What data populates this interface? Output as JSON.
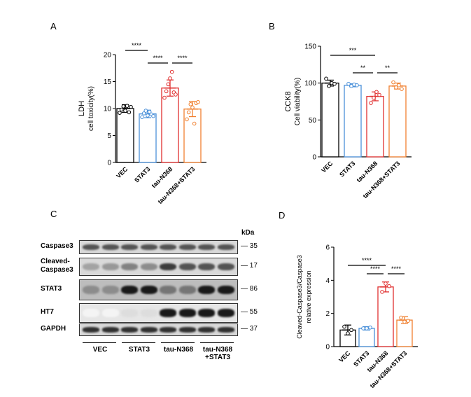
{
  "panels": {
    "a": "A",
    "b": "B",
    "c": "C",
    "d": "D"
  },
  "chart_data": [
    {
      "type": "bar",
      "categories": [
        "VEC",
        "STAT3",
        "tau-N368",
        "tau-N368+STAT3"
      ],
      "values": [
        10.0,
        9.0,
        13.8,
        9.9
      ],
      "errors": [
        0.7,
        0.7,
        1.5,
        1.4
      ],
      "points": [
        [
          9.2,
          9.8,
          10.4,
          9.6,
          10.5,
          9.3,
          10.3
        ],
        [
          8.4,
          9.1,
          9.6,
          8.7,
          9.4,
          8.9,
          8.6
        ],
        [
          12.0,
          13.2,
          14.5,
          15.6,
          16.8,
          13.0,
          12.6
        ],
        [
          8.0,
          9.3,
          10.8,
          10.2,
          7.2,
          11.0,
          11.2
        ]
      ],
      "ylabel": "LDH\ncell toxicity(%)",
      "ylim": [
        0,
        20
      ],
      "yticks": [
        0,
        5,
        10,
        15,
        20
      ],
      "colors": [
        "#000000",
        "#4a90d9",
        "#e03030",
        "#f08030"
      ],
      "significance": [
        {
          "from": 0,
          "to": 1,
          "label": "****"
        },
        {
          "from": 1,
          "to": 2,
          "label": "****"
        },
        {
          "from": 2,
          "to": 3,
          "label": "****"
        }
      ]
    },
    {
      "type": "bar",
      "categories": [
        "VEC",
        "STAT3",
        "tau-N368",
        "tau-N368+STAT3"
      ],
      "values": [
        100,
        97,
        82,
        96
      ],
      "errors": [
        4,
        2,
        6,
        4
      ],
      "points": [
        [
          106,
          96,
          100,
          99
        ],
        [
          99,
          96,
          98,
          97
        ],
        [
          73,
          80,
          88,
          84
        ],
        [
          101,
          94,
          97,
          92
        ]
      ],
      "ylabel": "CCK8\nCell viability(%)",
      "ylim": [
        0,
        150
      ],
      "yticks": [
        0,
        50,
        100,
        150
      ],
      "colors": [
        "#000000",
        "#4a90d9",
        "#e03030",
        "#f08030"
      ],
      "significance": [
        {
          "from": 0,
          "to": 2,
          "label": "***"
        },
        {
          "from": 1,
          "to": 2,
          "label": "**"
        },
        {
          "from": 2,
          "to": 3,
          "label": "**"
        }
      ]
    },
    {
      "type": "bar",
      "categories": [
        "VEC",
        "STAT3",
        "tau-N368",
        "tau-N368+STAT3"
      ],
      "values": [
        1.0,
        1.1,
        3.6,
        1.6
      ],
      "errors": [
        0.3,
        0.1,
        0.3,
        0.2
      ],
      "points": [
        [
          1.2,
          0.8,
          1.0
        ],
        [
          1.1,
          1.1,
          1.15
        ],
        [
          3.3,
          3.8,
          3.65
        ],
        [
          1.75,
          1.5,
          1.55
        ]
      ],
      "ylabel": "Cleaved-Caspase3/Caspase3\nrelative expression",
      "ylim": [
        0,
        6
      ],
      "yticks": [
        0,
        2,
        4,
        6
      ],
      "colors": [
        "#000000",
        "#4a90d9",
        "#e03030",
        "#f08030"
      ],
      "significance": [
        {
          "from": 0,
          "to": 2,
          "label": "****"
        },
        {
          "from": 1,
          "to": 2,
          "label": "****"
        },
        {
          "from": 2,
          "to": 3,
          "label": "****"
        }
      ]
    }
  ],
  "western_blot": {
    "kda_label": "kDa",
    "bands": [
      {
        "label": "Caspase3",
        "mw": "35"
      },
      {
        "label": "Cleaved-\nCaspase3",
        "mw": "17"
      },
      {
        "label": "STAT3",
        "mw": "86"
      },
      {
        "label": "HT7",
        "mw": "55"
      },
      {
        "label": "GAPDH",
        "mw": "37"
      }
    ],
    "groups": [
      "VEC",
      "STAT3",
      "tau-N368",
      "tau-N368\n+STAT3"
    ]
  }
}
